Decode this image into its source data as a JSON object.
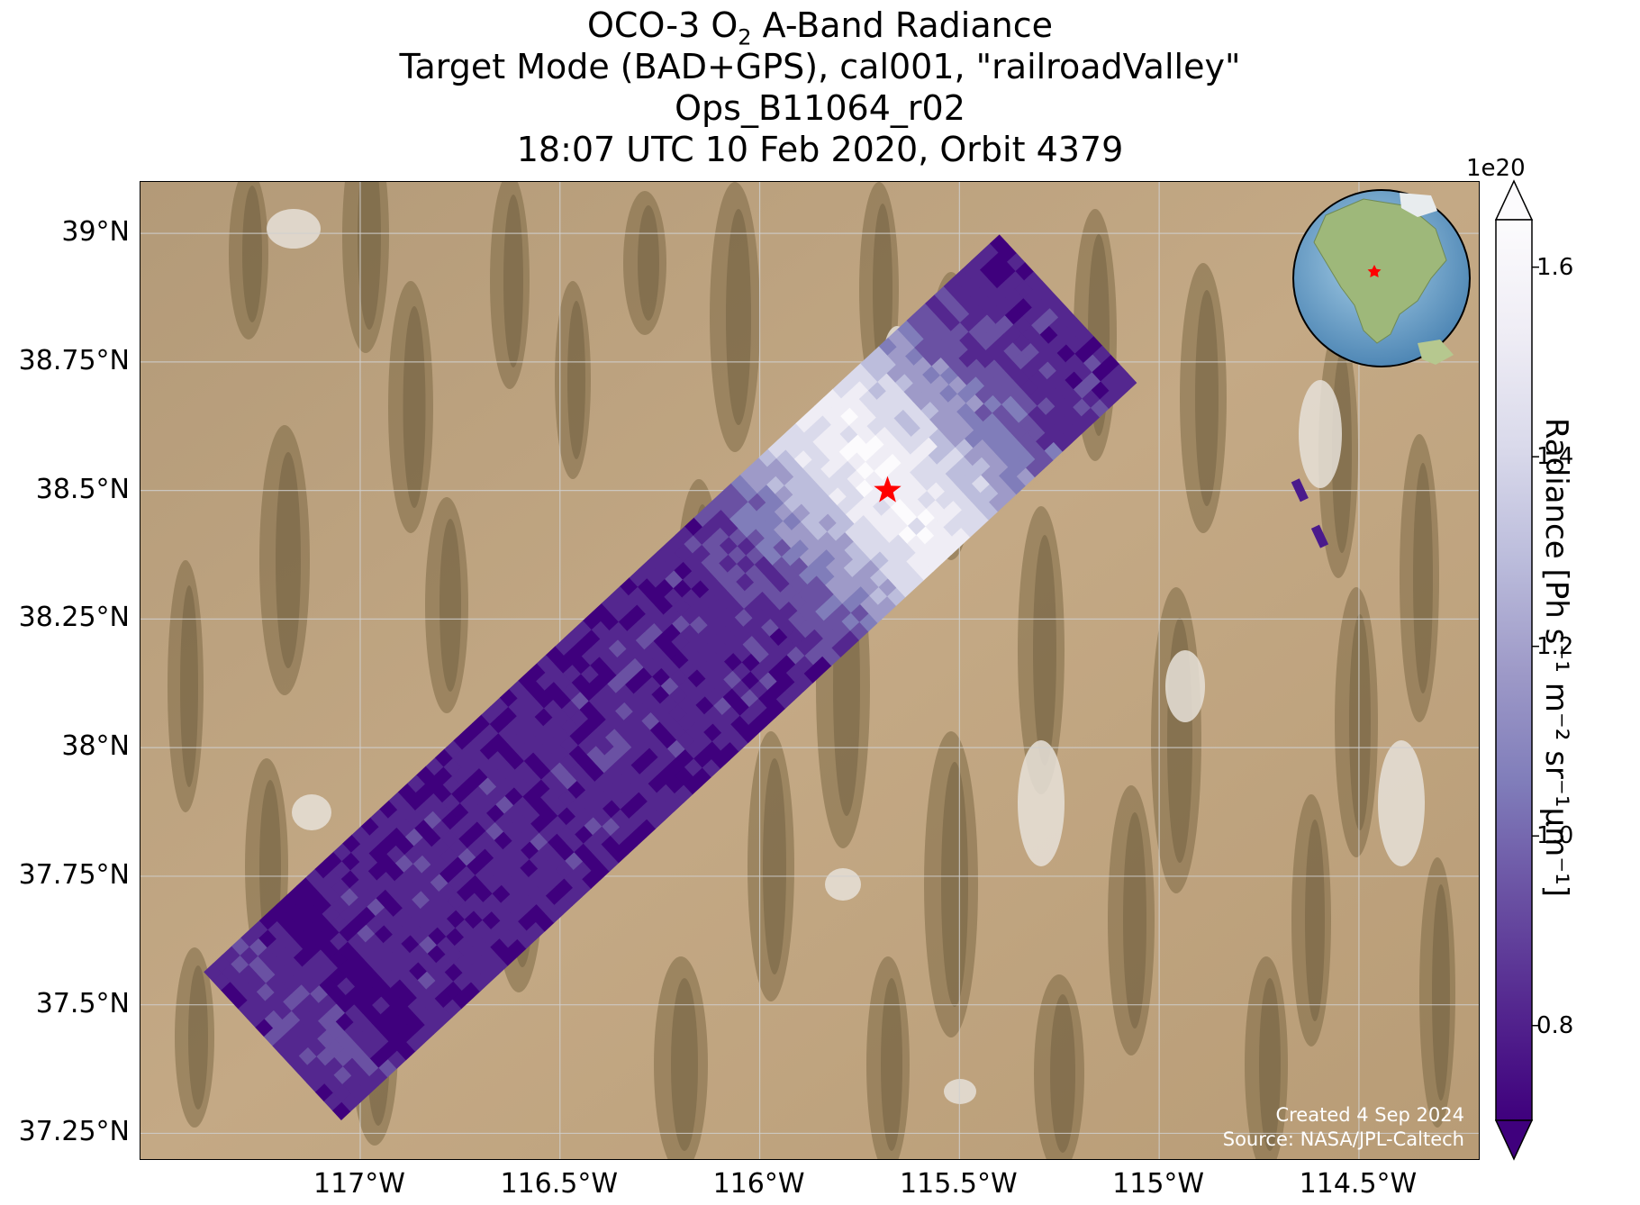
{
  "title": {
    "line1_prefix": "OCO-3 O",
    "line1_sub": "2",
    "line1_suffix": " A-Band Radiance",
    "line2": "Target Mode (BAD+GPS), cal001, \"railroadValley\"",
    "line3": "Ops_B11064_r02",
    "line4": "18:07 UTC 10 Feb 2020, Orbit 4379"
  },
  "map": {
    "lon_range": [
      -117.55,
      -114.2
    ],
    "lat_range": [
      37.2,
      39.1
    ],
    "lat_ticks": [
      "39°N",
      "38.75°N",
      "38.5°N",
      "38.25°N",
      "38°N",
      "37.75°N",
      "37.5°N",
      "37.25°N"
    ],
    "lat_values": [
      39.0,
      38.75,
      38.5,
      38.25,
      38.0,
      37.75,
      37.5,
      37.25
    ],
    "lon_ticks": [
      "117°W",
      "116.5°W",
      "116°W",
      "115.5°W",
      "115°W",
      "114.5°W"
    ],
    "lon_values": [
      -117.0,
      -116.5,
      -116.0,
      -115.5,
      -115.0,
      -114.5
    ],
    "target_lon": -115.68,
    "target_lat": 38.5,
    "target_marker": "red-star-icon",
    "basemap": "desert-satellite-imagery",
    "gridlines": true
  },
  "colorbar": {
    "label": "Radiance [Ph s⁻¹ m⁻² sr⁻¹μm⁻¹]",
    "exponent": "1e20",
    "ticks": [
      "0.8",
      "1.0",
      "1.2",
      "1.4",
      "1.6"
    ],
    "tick_values": [
      0.8,
      1.0,
      1.2,
      1.4,
      1.6
    ],
    "range": [
      0.7,
      1.65
    ],
    "colormap": [
      "#3f007d",
      "#54278f",
      "#6a51a3",
      "#807dba",
      "#9e9ac8",
      "#bcbddc",
      "#dadaeb",
      "#efedf5",
      "#fcfbfd"
    ],
    "extend": "both"
  },
  "inset": {
    "type": "globe",
    "marker": "red-star-icon"
  },
  "credit": {
    "line1": "Created 4 Sep 2024",
    "line2": "Source: NASA/JPL-Caltech"
  }
}
